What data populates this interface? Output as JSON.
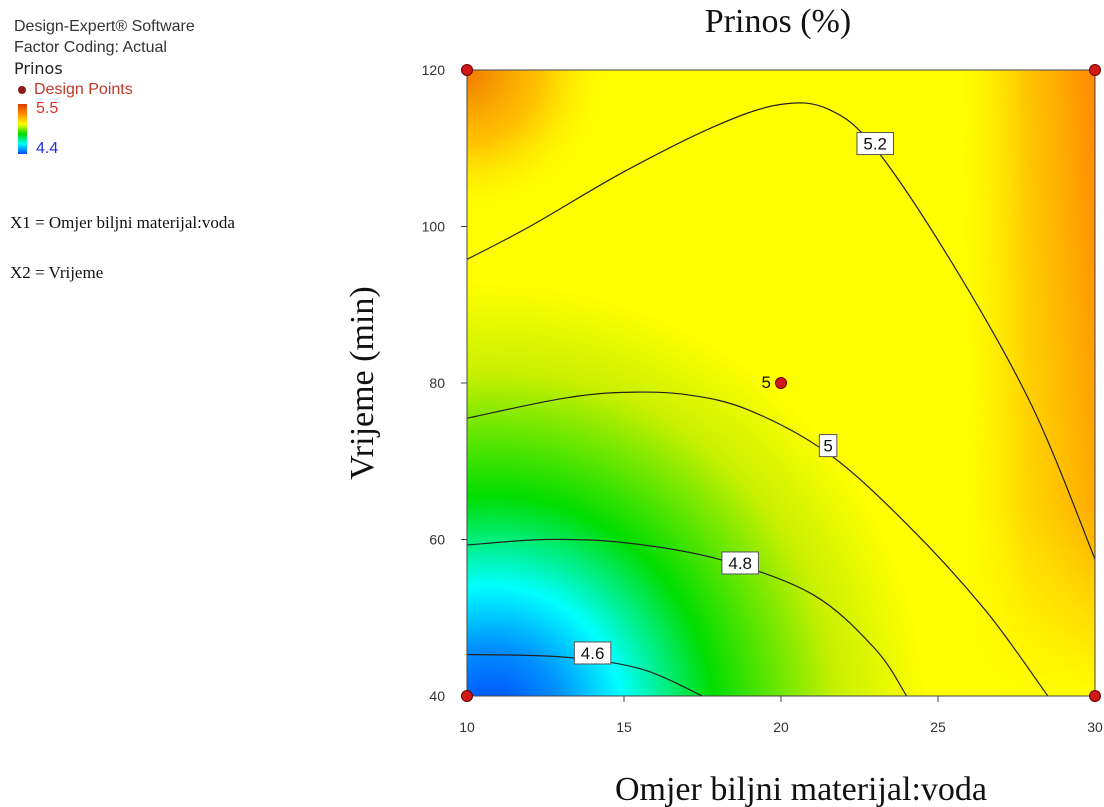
{
  "info": {
    "software": "Design-Expert® Software",
    "coding": "Factor Coding: Actual",
    "response": "Prinos",
    "design_points_label": "Design Points",
    "scale_max": "5.5",
    "scale_min": "4.4",
    "x1": "X1 = Omjer biljni materijal:voda",
    "x2": "X2 = Vrijeme"
  },
  "chart_data": {
    "type": "contour",
    "title": "Prinos (%)",
    "xlabel": "Omjer biljni materijal:voda",
    "ylabel": "Vrijeme (min)",
    "xlim": [
      10,
      30
    ],
    "ylim": [
      40,
      120
    ],
    "xticks": [
      10,
      15,
      20,
      25,
      30
    ],
    "yticks": [
      40,
      60,
      80,
      100,
      120
    ],
    "color_range": [
      4.4,
      5.5
    ],
    "colors": [
      "#0040ff",
      "#00ffff",
      "#00dd00",
      "#ffff00",
      "#ff8c00",
      "#e04000"
    ],
    "contours": [
      {
        "level": "4.6",
        "points": [
          [
            10,
            45.3
          ],
          [
            13,
            45
          ],
          [
            15.5,
            43.5
          ],
          [
            17.5,
            40
          ]
        ],
        "label_at": [
          14,
          45.5
        ]
      },
      {
        "level": "4.8",
        "points": [
          [
            10,
            59.3
          ],
          [
            12.5,
            60
          ],
          [
            15,
            59.6
          ],
          [
            18,
            57.5
          ],
          [
            21,
            53
          ],
          [
            23,
            46
          ],
          [
            24,
            40
          ]
        ],
        "label_at": [
          18.7,
          57
        ]
      },
      {
        "level": "5",
        "points": [
          [
            10,
            75.5
          ],
          [
            13,
            78
          ],
          [
            15,
            78.8
          ],
          [
            17,
            78.5
          ],
          [
            19,
            76.5
          ],
          [
            21.5,
            71
          ],
          [
            24,
            62
          ],
          [
            26.5,
            51
          ],
          [
            28.5,
            40
          ]
        ],
        "label_at": [
          21.5,
          72
        ]
      },
      {
        "level": "5.2",
        "points": [
          [
            10,
            95.8
          ],
          [
            12,
            100
          ],
          [
            15,
            107
          ],
          [
            18,
            113
          ],
          [
            20,
            115.6
          ],
          [
            21.5,
            115
          ],
          [
            23,
            110
          ],
          [
            25.5,
            95
          ],
          [
            28,
            77
          ],
          [
            30,
            57.5
          ]
        ],
        "label_at": [
          23,
          110.6
        ]
      }
    ],
    "design_points": [
      {
        "x": 10,
        "y": 120,
        "label": ""
      },
      {
        "x": 30,
        "y": 120,
        "label": ""
      },
      {
        "x": 20,
        "y": 80,
        "label": "5"
      },
      {
        "x": 10,
        "y": 40,
        "label": ""
      },
      {
        "x": 30,
        "y": 40,
        "label": ""
      }
    ]
  }
}
